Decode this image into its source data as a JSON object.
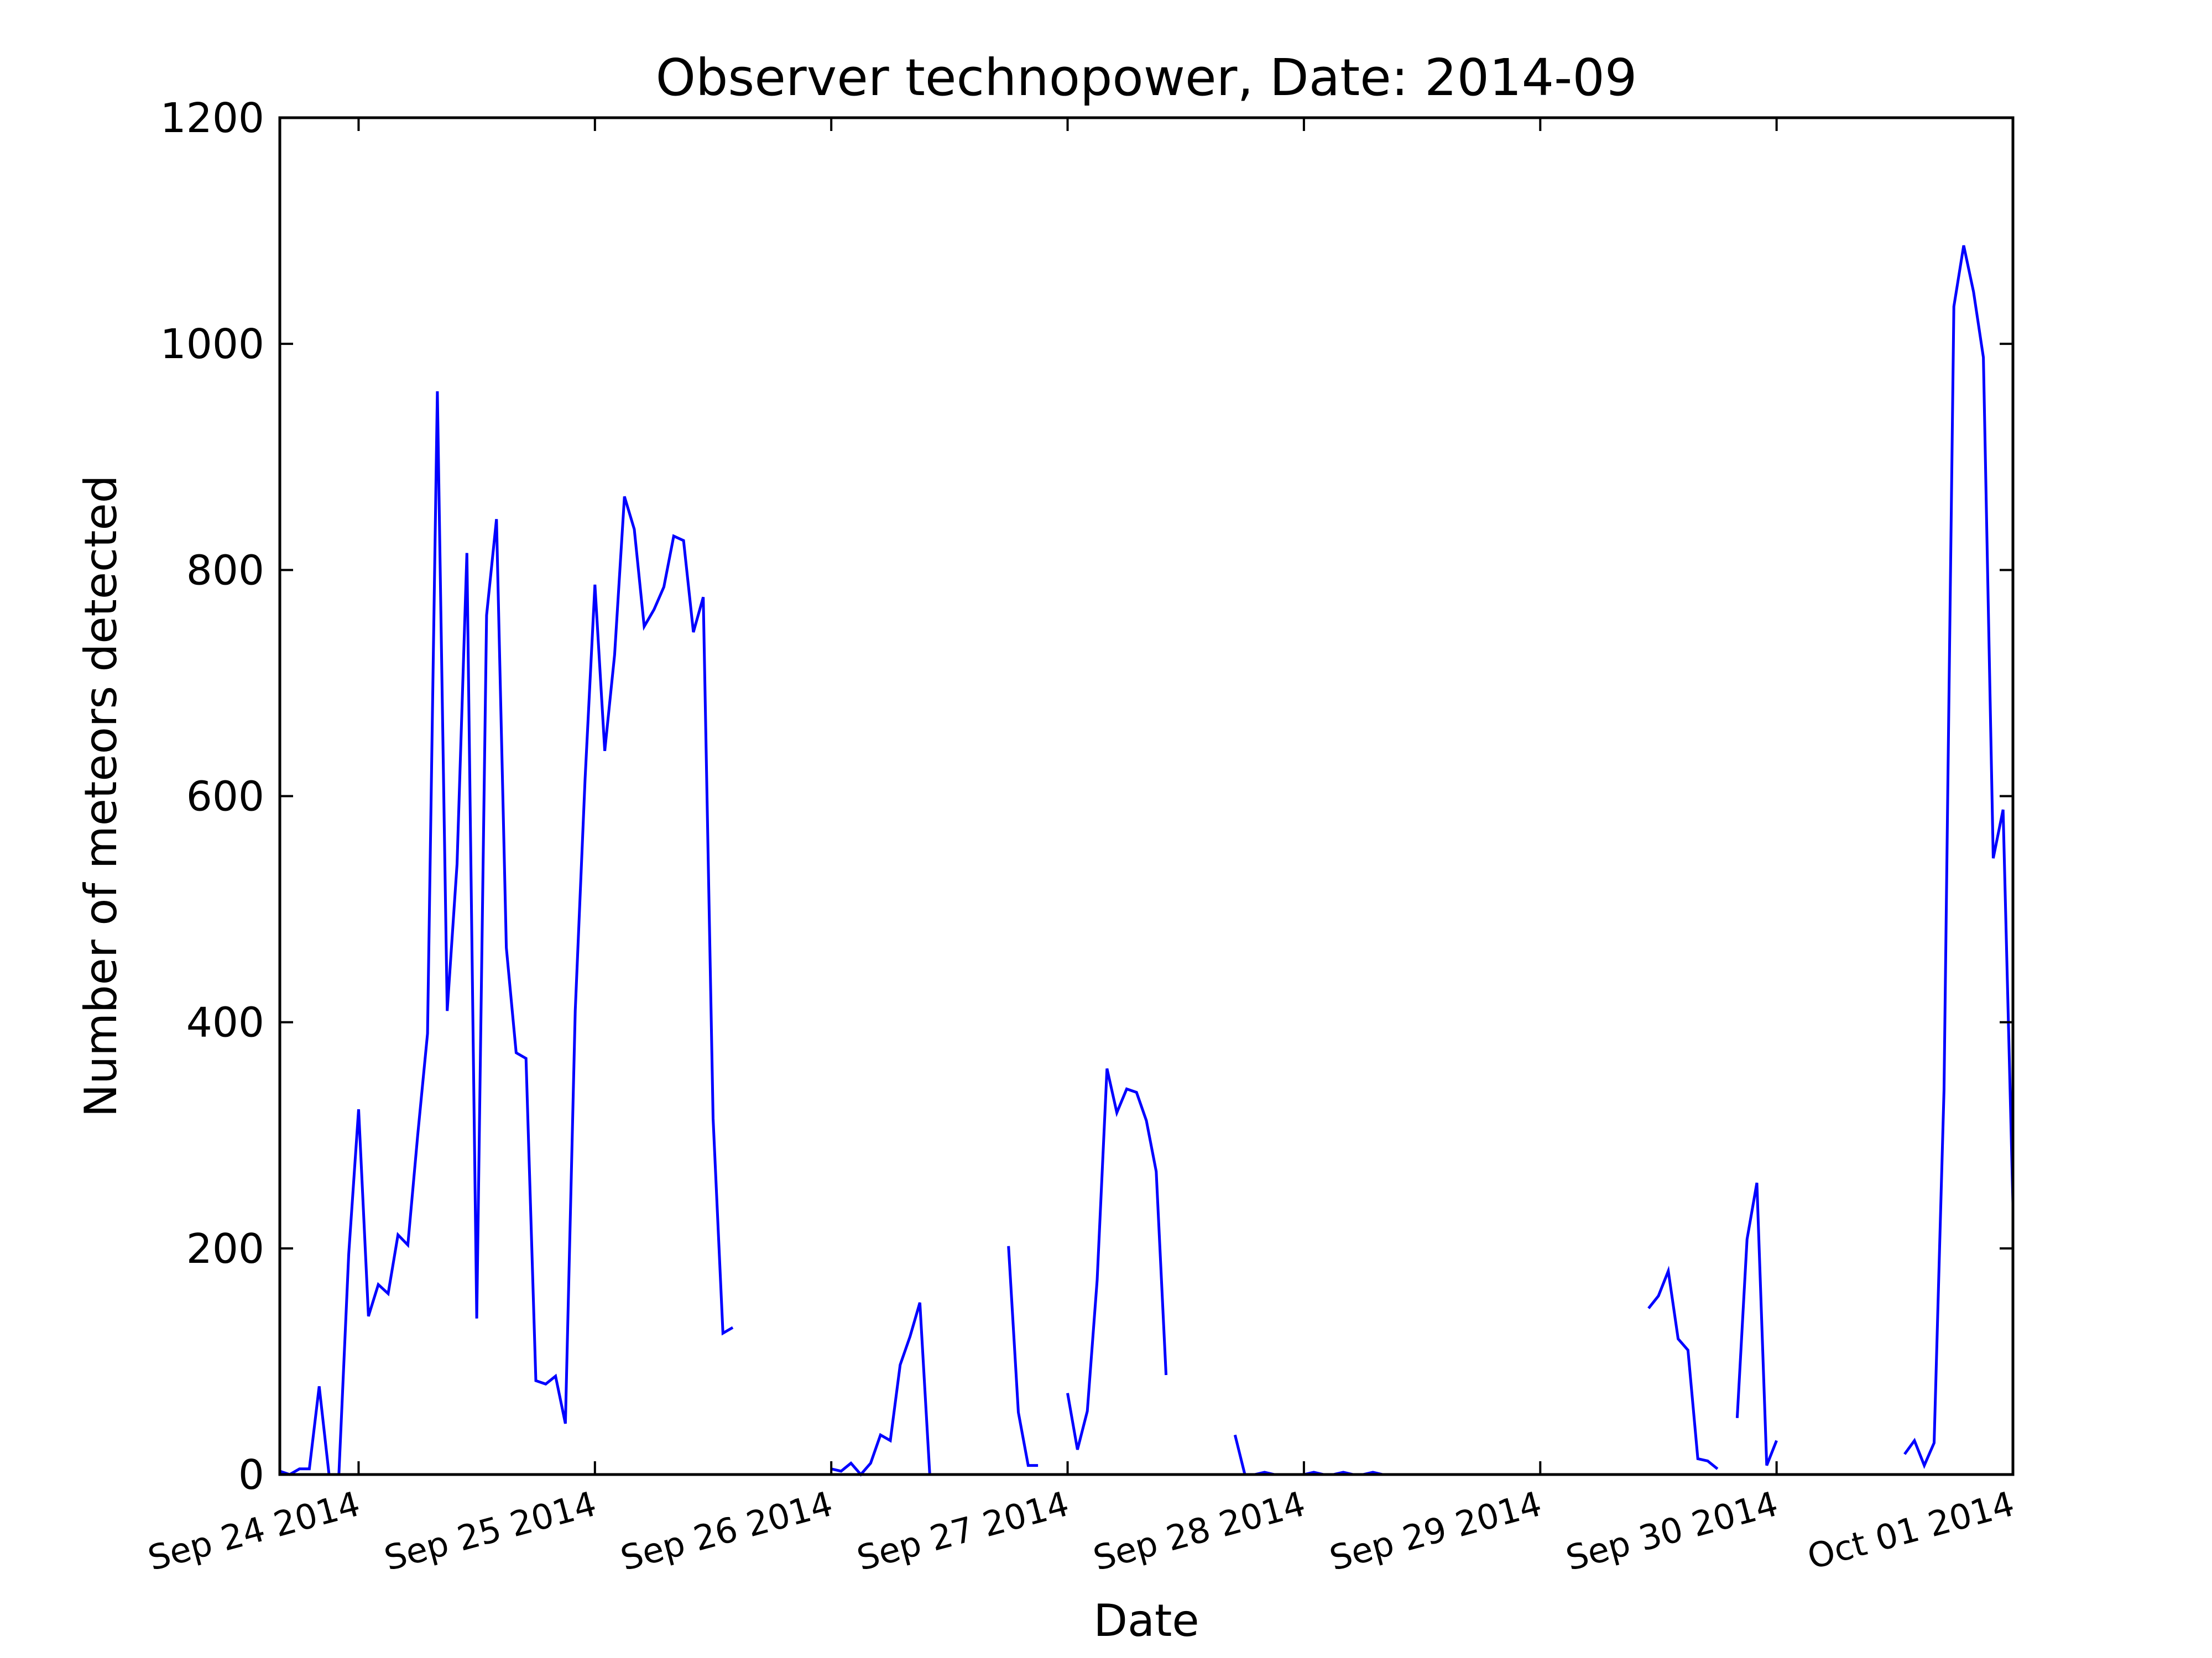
{
  "chart_data": {
    "type": "line",
    "title": "Observer technopower, Date: 2014-09",
    "xlabel": "Date",
    "ylabel": "Number of meteors detected",
    "x_range": [
      "2014-09-23T16:00",
      "2014-10-01T00:00"
    ],
    "ylim": [
      0,
      1200
    ],
    "y_ticks": [
      0,
      200,
      400,
      600,
      800,
      1000,
      1200
    ],
    "x_ticks": [
      {
        "date": "2014-09-24T00:00",
        "label": "Sep 24 2014"
      },
      {
        "date": "2014-09-25T00:00",
        "label": "Sep 25 2014"
      },
      {
        "date": "2014-09-26T00:00",
        "label": "Sep 26 2014"
      },
      {
        "date": "2014-09-27T00:00",
        "label": "Sep 27 2014"
      },
      {
        "date": "2014-09-28T00:00",
        "label": "Sep 28 2014"
      },
      {
        "date": "2014-09-29T00:00",
        "label": "Sep 29 2014"
      },
      {
        "date": "2014-09-30T00:00",
        "label": "Sep 30 2014"
      },
      {
        "date": "2014-10-01T00:00",
        "label": "Oct 01 2014"
      }
    ],
    "x_tick_rotation_deg": 15,
    "grid": false,
    "line_color": "#0000ff",
    "series": [
      {
        "segments": [
          [
            {
              "x": "2014-09-23T16:00",
              "y": 3
            },
            {
              "x": "2014-09-23T17:00",
              "y": 0
            },
            {
              "x": "2014-09-23T18:00",
              "y": 5
            },
            {
              "x": "2014-09-23T19:00",
              "y": 5
            },
            {
              "x": "2014-09-23T20:00",
              "y": 78
            },
            {
              "x": "2014-09-23T21:00",
              "y": 0
            },
            {
              "x": "2014-09-23T22:00",
              "y": 0
            },
            {
              "x": "2014-09-23T23:00",
              "y": 195
            },
            {
              "x": "2014-09-24T00:00",
              "y": 323
            },
            {
              "x": "2014-09-24T01:00",
              "y": 140
            },
            {
              "x": "2014-09-24T02:00",
              "y": 168
            },
            {
              "x": "2014-09-24T03:00",
              "y": 160
            },
            {
              "x": "2014-09-24T04:00",
              "y": 212
            },
            {
              "x": "2014-09-24T05:00",
              "y": 203
            },
            {
              "x": "2014-09-24T06:00",
              "y": 300
            },
            {
              "x": "2014-09-24T07:00",
              "y": 390
            },
            {
              "x": "2014-09-24T08:00",
              "y": 958
            },
            {
              "x": "2014-09-24T09:00",
              "y": 410
            },
            {
              "x": "2014-09-24T10:00",
              "y": 540
            },
            {
              "x": "2014-09-24T11:00",
              "y": 815
            },
            {
              "x": "2014-09-24T12:00",
              "y": 138
            },
            {
              "x": "2014-09-24T13:00",
              "y": 760
            },
            {
              "x": "2014-09-24T14:00",
              "y": 845
            },
            {
              "x": "2014-09-24T15:00",
              "y": 466
            },
            {
              "x": "2014-09-24T16:00",
              "y": 373
            },
            {
              "x": "2014-09-24T17:00",
              "y": 368
            },
            {
              "x": "2014-09-24T18:00",
              "y": 83
            },
            {
              "x": "2014-09-24T19:00",
              "y": 80
            },
            {
              "x": "2014-09-24T20:00",
              "y": 87
            },
            {
              "x": "2014-09-24T21:00",
              "y": 45
            },
            {
              "x": "2014-09-24T22:00",
              "y": 410
            },
            {
              "x": "2014-09-24T23:00",
              "y": 615
            },
            {
              "x": "2014-09-25T00:00",
              "y": 787
            },
            {
              "x": "2014-09-25T01:00",
              "y": 640
            },
            {
              "x": "2014-09-25T02:00",
              "y": 725
            },
            {
              "x": "2014-09-25T03:00",
              "y": 865
            },
            {
              "x": "2014-09-25T04:00",
              "y": 836
            },
            {
              "x": "2014-09-25T05:00",
              "y": 750
            },
            {
              "x": "2014-09-25T06:00",
              "y": 765
            },
            {
              "x": "2014-09-25T07:00",
              "y": 785
            },
            {
              "x": "2014-09-25T08:00",
              "y": 830
            },
            {
              "x": "2014-09-25T09:00",
              "y": 826
            },
            {
              "x": "2014-09-25T10:00",
              "y": 745
            },
            {
              "x": "2014-09-25T11:00",
              "y": 776
            },
            {
              "x": "2014-09-25T12:00",
              "y": 315
            },
            {
              "x": "2014-09-25T13:00",
              "y": 125
            },
            {
              "x": "2014-09-25T14:00",
              "y": 130
            }
          ],
          [
            {
              "x": "2014-09-26T00:00",
              "y": 5
            },
            {
              "x": "2014-09-26T01:00",
              "y": 3
            },
            {
              "x": "2014-09-26T02:00",
              "y": 10
            },
            {
              "x": "2014-09-26T03:00",
              "y": 0
            },
            {
              "x": "2014-09-26T04:00",
              "y": 10
            },
            {
              "x": "2014-09-26T05:00",
              "y": 35
            },
            {
              "x": "2014-09-26T06:00",
              "y": 30
            },
            {
              "x": "2014-09-26T07:00",
              "y": 97
            },
            {
              "x": "2014-09-26T08:00",
              "y": 122
            },
            {
              "x": "2014-09-26T09:00",
              "y": 152
            },
            {
              "x": "2014-09-26T10:00",
              "y": 0
            }
          ],
          [
            {
              "x": "2014-09-26T18:00",
              "y": 202
            },
            {
              "x": "2014-09-26T19:00",
              "y": 55
            },
            {
              "x": "2014-09-26T20:00",
              "y": 8
            },
            {
              "x": "2014-09-26T21:00",
              "y": 8
            }
          ],
          [
            {
              "x": "2014-09-27T00:00",
              "y": 72
            },
            {
              "x": "2014-09-27T01:00",
              "y": 22
            },
            {
              "x": "2014-09-27T02:00",
              "y": 56
            },
            {
              "x": "2014-09-27T03:00",
              "y": 172
            },
            {
              "x": "2014-09-27T04:00",
              "y": 359
            },
            {
              "x": "2014-09-27T05:00",
              "y": 320
            },
            {
              "x": "2014-09-27T06:00",
              "y": 341
            },
            {
              "x": "2014-09-27T07:00",
              "y": 338
            },
            {
              "x": "2014-09-27T08:00",
              "y": 313
            },
            {
              "x": "2014-09-27T09:00",
              "y": 268
            },
            {
              "x": "2014-09-27T10:00",
              "y": 88
            }
          ],
          [
            {
              "x": "2014-09-27T17:00",
              "y": 35
            },
            {
              "x": "2014-09-27T18:00",
              "y": 0
            },
            {
              "x": "2014-09-27T19:00",
              "y": 0
            },
            {
              "x": "2014-09-27T20:00",
              "y": 2
            },
            {
              "x": "2014-09-27T21:00",
              "y": 0
            },
            {
              "x": "2014-09-27T22:00",
              "y": 0
            },
            {
              "x": "2014-09-27T23:00",
              "y": 0
            },
            {
              "x": "2014-09-28T00:00",
              "y": 0
            },
            {
              "x": "2014-09-28T01:00",
              "y": 2
            },
            {
              "x": "2014-09-28T02:00",
              "y": 0
            },
            {
              "x": "2014-09-28T03:00",
              "y": 0
            },
            {
              "x": "2014-09-28T04:00",
              "y": 2
            },
            {
              "x": "2014-09-28T05:00",
              "y": 0
            },
            {
              "x": "2014-09-28T06:00",
              "y": 0
            },
            {
              "x": "2014-09-28T07:00",
              "y": 2
            },
            {
              "x": "2014-09-28T08:00",
              "y": 0
            }
          ],
          [
            {
              "x": "2014-09-29T11:00",
              "y": 147
            },
            {
              "x": "2014-09-29T12:00",
              "y": 158
            },
            {
              "x": "2014-09-29T13:00",
              "y": 180
            },
            {
              "x": "2014-09-29T14:00",
              "y": 120
            },
            {
              "x": "2014-09-29T15:00",
              "y": 110
            },
            {
              "x": "2014-09-29T16:00",
              "y": 14
            },
            {
              "x": "2014-09-29T17:00",
              "y": 12
            },
            {
              "x": "2014-09-29T18:00",
              "y": 5
            }
          ],
          [
            {
              "x": "2014-09-29T20:00",
              "y": 50
            },
            {
              "x": "2014-09-29T21:00",
              "y": 208
            },
            {
              "x": "2014-09-29T22:00",
              "y": 258
            },
            {
              "x": "2014-09-29T23:00",
              "y": 8
            },
            {
              "x": "2014-09-30T00:00",
              "y": 30
            }
          ],
          [
            {
              "x": "2014-09-30T13:00",
              "y": 18
            },
            {
              "x": "2014-09-30T14:00",
              "y": 30
            },
            {
              "x": "2014-09-30T15:00",
              "y": 8
            },
            {
              "x": "2014-09-30T16:00",
              "y": 28
            },
            {
              "x": "2014-09-30T17:00",
              "y": 340
            },
            {
              "x": "2014-09-30T18:00",
              "y": 1033
            },
            {
              "x": "2014-09-30T19:00",
              "y": 1087
            },
            {
              "x": "2014-09-30T20:00",
              "y": 1046
            },
            {
              "x": "2014-09-30T21:00",
              "y": 988
            },
            {
              "x": "2014-09-30T22:00",
              "y": 545
            },
            {
              "x": "2014-09-30T23:00",
              "y": 588
            },
            {
              "x": "2014-10-01T00:00",
              "y": 240
            }
          ]
        ]
      }
    ]
  }
}
